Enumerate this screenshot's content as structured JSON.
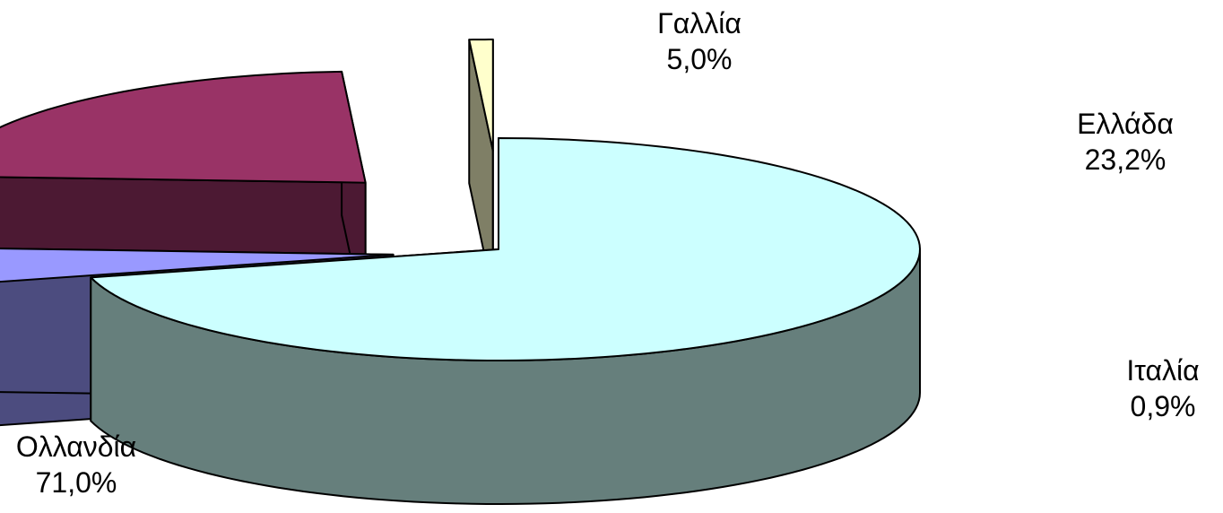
{
  "chart_data": {
    "type": "pie",
    "style": "3d-exploded",
    "number_format": "comma-decimal",
    "slices": [
      {
        "label": "Ολλανδία",
        "value_label": "71,0%",
        "value": 71.0,
        "top_color": "#ccffff",
        "side_color": "#667f7c"
      },
      {
        "label": "Γαλλία",
        "value_label": "5,0%",
        "value": 5.0,
        "top_color": "#9999ff",
        "side_color": "#4c4c7f"
      },
      {
        "label": "Ελλάδα",
        "value_label": "23,2%",
        "value": 23.2,
        "top_color": "#993366",
        "side_color": "#4c1933"
      },
      {
        "label": "Ιταλία",
        "value_label": "0,9%",
        "value": 0.9,
        "top_color": "#ffffcc",
        "side_color": "#7f7f66"
      }
    ],
    "outline_color": "#000000"
  }
}
